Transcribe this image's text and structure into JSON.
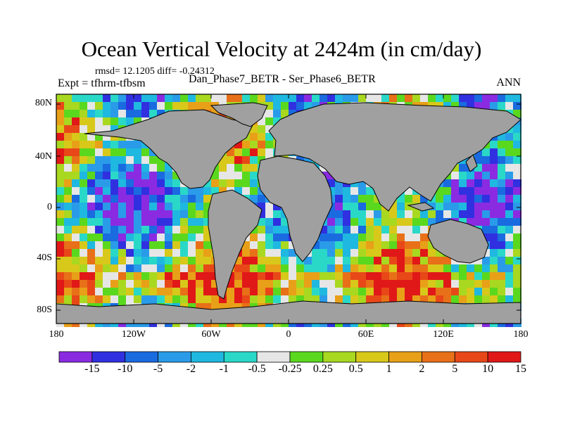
{
  "title": "Ocean Vertical Velocity at 2424m (in cm/day)",
  "stats": "rmsd= 12.1205 diff= -0.24312",
  "experiment": "Expt = tfhrm-tfbsm",
  "subtitle": "Dan_Phase7_BETR - Ser_Phase6_BETR",
  "season": "ANN",
  "map": {
    "lat_ticks": [
      "80N",
      "40N",
      "0",
      "40S",
      "80S"
    ],
    "lon_ticks": [
      "180",
      "120W",
      "60W",
      "0",
      "60E",
      "120E",
      "180"
    ],
    "land_color": "#a0a0a0",
    "missing_color": "#a0a0a0"
  },
  "colorbar": {
    "labels": [
      "-15",
      "-10",
      "-5",
      "-2",
      "-1",
      "-0.5",
      "-0.25",
      "0.25",
      "0.5",
      "1",
      "2",
      "5",
      "10",
      "15"
    ],
    "colors": [
      "#8a2be2",
      "#3030e0",
      "#1a6ae0",
      "#2a9be8",
      "#1fb8e0",
      "#2ad8c8",
      "#e6e6e6",
      "#5ad81e",
      "#a8d820",
      "#d8c81a",
      "#e8a018",
      "#e87018",
      "#e84818",
      "#e01818"
    ]
  }
}
